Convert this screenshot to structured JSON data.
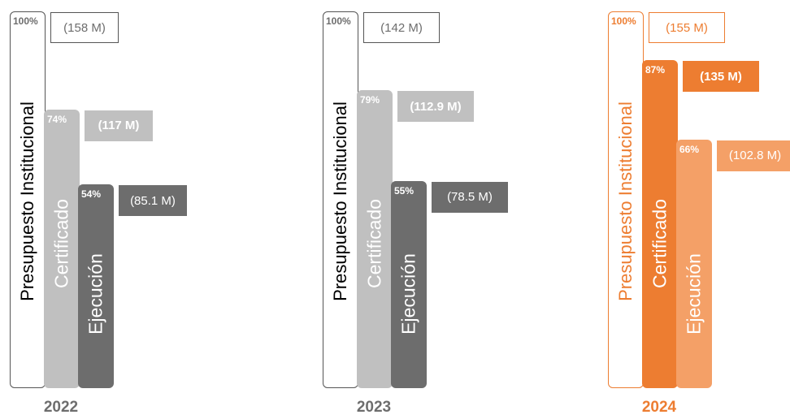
{
  "chart_data": [
    {
      "type": "bar",
      "year": "2022",
      "categories": [
        "Presupuesto Institucional",
        "Certificado",
        "Ejecución"
      ],
      "percent_labels": [
        "100%",
        "74%",
        "54%"
      ],
      "amount_labels": [
        "(158 M)",
        "(117 M)",
        "(85.1 M)"
      ],
      "values": [
        158,
        117,
        85.1
      ],
      "percent": [
        100,
        74,
        54
      ],
      "colors": {
        "budget_border": "#555555",
        "budget_text": "#000000",
        "cert": "#c0c0c0",
        "exec": "#6d6d6d",
        "year": "#6d6d6d"
      }
    },
    {
      "type": "bar",
      "year": "2023",
      "categories": [
        "Presupuesto Institucional",
        "Certificado",
        "Ejecución"
      ],
      "percent_labels": [
        "100%",
        "79%",
        "55%"
      ],
      "amount_labels": [
        "(142 M)",
        "(112.9 M)",
        "(78.5 M)"
      ],
      "values": [
        142,
        112.9,
        78.5
      ],
      "percent": [
        100,
        79,
        55
      ],
      "colors": {
        "budget_border": "#555555",
        "budget_text": "#000000",
        "cert": "#c0c0c0",
        "exec": "#6d6d6d",
        "year": "#6d6d6d"
      }
    },
    {
      "type": "bar",
      "year": "2024",
      "categories": [
        "Presupuesto Institucional",
        "Certificado",
        "Ejecución"
      ],
      "percent_labels": [
        "100%",
        "87%",
        "66%"
      ],
      "amount_labels": [
        "(155 M)",
        "(135 M)",
        "(102.8 M)"
      ],
      "values": [
        155,
        135,
        102.8
      ],
      "percent": [
        100,
        87,
        66
      ],
      "colors": {
        "budget_border": "#ed7d31",
        "budget_text": "#ed7d31",
        "cert": "#ed7d31",
        "exec": "#f4a067",
        "year": "#ed7d31"
      }
    }
  ]
}
